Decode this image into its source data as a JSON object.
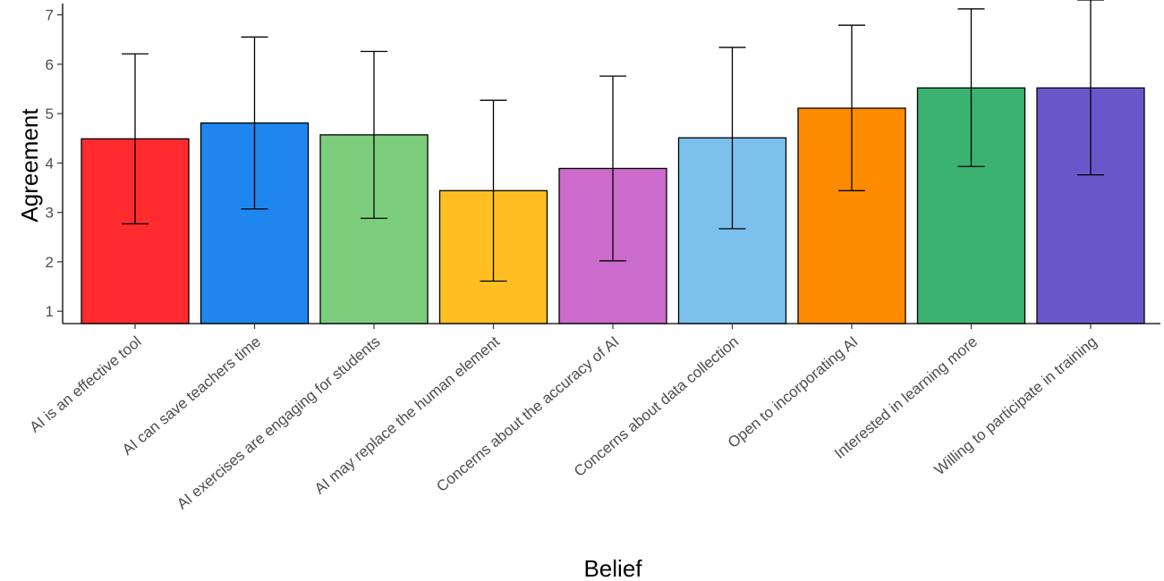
{
  "chart_data": {
    "type": "bar",
    "title": "",
    "xlabel": "Belief",
    "ylabel": "Agreement",
    "ylim": [
      0.75,
      7.3
    ],
    "yticks": [
      "1",
      "2",
      "3",
      "4",
      "5",
      "6",
      "7"
    ],
    "grid": false,
    "legend": "none",
    "error_bars": true,
    "categories": [
      "AI is an effective tool",
      "AI can save teachers time",
      "AI exercises are engaging for students",
      "AI may replace the human element",
      "Concerns about the accuracy of AI",
      "Concerns about data collection",
      "Open to incorporating AI",
      "Interested in learning more",
      "Willing to participate in training"
    ],
    "values": [
      4.49,
      4.81,
      4.57,
      3.44,
      3.89,
      4.51,
      5.11,
      5.52,
      5.52
    ],
    "error_low": [
      2.77,
      3.07,
      2.88,
      1.61,
      2.02,
      2.67,
      3.44,
      3.93,
      3.76
    ],
    "error_high": [
      6.21,
      6.55,
      6.26,
      5.27,
      5.76,
      6.34,
      6.79,
      7.12,
      7.3
    ],
    "colors": [
      "#FF2B2F",
      "#1E86EE",
      "#7DCE7C",
      "#FFBF23",
      "#CB6BCB",
      "#7CC0EE",
      "#FF8B00",
      "#3BB270",
      "#6A58CB"
    ]
  }
}
